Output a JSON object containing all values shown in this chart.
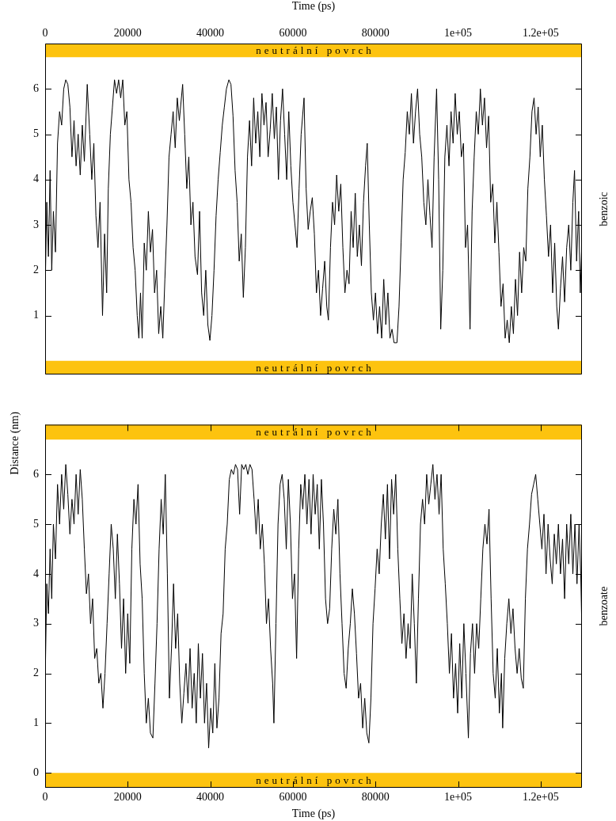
{
  "chart_data": [
    {
      "type": "line",
      "xlim": [
        0,
        130000
      ],
      "x2lim": [
        0,
        130000
      ],
      "x2label": "Time (ps)",
      "x2ticks": [
        0,
        20000,
        40000,
        60000,
        80000,
        {
          "value": 100000,
          "label": "1e+05"
        },
        {
          "value": 120000,
          "label": "1.2e+05"
        }
      ],
      "ylim": [
        -0.3,
        7
      ],
      "yticks": [
        1,
        2,
        3,
        4,
        5,
        6
      ],
      "ylabel": "Distance (nm)",
      "y2label": "benzoic",
      "tick_labels": "y",
      "bands": [
        {
          "axis": "y",
          "from": 6.7,
          "to": 7,
          "label": "neutrální povrch",
          "color": "#fdc30f"
        },
        {
          "axis": "y",
          "from": -0.3,
          "to": 0,
          "label": "neutrální povrch",
          "color": "#fdc30f"
        }
      ],
      "series": [
        {
          "color": "#000000",
          "x": [
            0,
            400,
            800,
            1200,
            1600,
            2000,
            2500,
            3000,
            3500,
            4000,
            4500,
            5000,
            5500,
            6000,
            6500,
            7000,
            7500,
            8000,
            8500,
            9000,
            9500,
            10200,
            10800,
            11300,
            11800,
            12300,
            12800,
            13300,
            13900,
            14400,
            14900,
            15300,
            15800,
            16300,
            16800,
            17300,
            17800,
            18300,
            18800,
            19300,
            19800,
            20300,
            20800,
            21300,
            21800,
            22300,
            22700,
            23100,
            23500,
            24000,
            24500,
            25000,
            25500,
            26000,
            26500,
            27000,
            27500,
            28000,
            28500,
            29000,
            29500,
            30000,
            30500,
            31000,
            31500,
            32000,
            32500,
            33300,
            33800,
            34300,
            34800,
            35300,
            35800,
            36300,
            36900,
            37400,
            37900,
            38400,
            38900,
            39400,
            39900,
            40400,
            40900,
            41400,
            41900,
            42400,
            42900,
            43400,
            43900,
            44500,
            45000,
            45500,
            46000,
            46500,
            47000,
            47500,
            48000,
            48500,
            49000,
            49500,
            50000,
            50500,
            51000,
            51500,
            52000,
            52500,
            53000,
            53500,
            54000,
            54500,
            55000,
            55500,
            56000,
            56500,
            57000,
            57500,
            58000,
            58500,
            59000,
            59500,
            60000,
            60500,
            61000,
            61500,
            62000,
            62700,
            63200,
            63700,
            64200,
            64700,
            65200,
            65700,
            66200,
            66700,
            67200,
            67700,
            68200,
            68600,
            69100,
            69600,
            70100,
            70600,
            71100,
            71600,
            72100,
            72600,
            73100,
            73600,
            74100,
            74600,
            75100,
            75600,
            76100,
            76600,
            77100,
            77600,
            78000,
            78500,
            79000,
            79500,
            80000,
            80500,
            81000,
            81500,
            82000,
            82500,
            83000,
            83500,
            84000,
            84500,
            85200,
            85700,
            86200,
            86700,
            87200,
            87700,
            88200,
            88700,
            89200,
            89700,
            90200,
            90700,
            91200,
            91700,
            92200,
            92700,
            93200,
            93700,
            94200,
            94800,
            95300,
            95800,
            96300,
            96800,
            97300,
            97800,
            98300,
            98800,
            99300,
            99800,
            100300,
            100800,
            101300,
            101800,
            102300,
            102900,
            103400,
            103900,
            104400,
            104900,
            105400,
            105900,
            106400,
            106900,
            107400,
            107900,
            108400,
            108900,
            109400,
            109900,
            110400,
            110900,
            111400,
            111900,
            112400,
            112900,
            113400,
            113900,
            114400,
            114900,
            115400,
            115900,
            116400,
            116900,
            117400,
            117900,
            118400,
            118900,
            119400,
            119900,
            120400,
            120900,
            121400,
            121900,
            122400,
            122900,
            123400,
            123900,
            124300,
            124800,
            125300,
            125800,
            126300,
            126800,
            127300,
            127800,
            128200,
            128700,
            129200,
            129600,
            130000
          ],
          "values": [
            1.5,
            3.5,
            2.3,
            4.2,
            2.0,
            3.3,
            2.4,
            4.8,
            5.5,
            5.2,
            6.0,
            6.2,
            6.1,
            5.6,
            4.5,
            5.3,
            4.3,
            5.0,
            4.1,
            5.2,
            4.4,
            6.1,
            5.0,
            4.0,
            4.8,
            3.2,
            2.5,
            3.5,
            1.0,
            2.8,
            1.5,
            3.8,
            5.0,
            5.6,
            6.2,
            5.9,
            6.2,
            5.8,
            6.2,
            5.2,
            5.5,
            4.0,
            3.5,
            2.5,
            2.0,
            1.0,
            0.5,
            1.5,
            0.5,
            2.6,
            2.0,
            3.3,
            2.4,
            2.9,
            1.5,
            2.0,
            0.6,
            1.2,
            0.5,
            1.8,
            3.0,
            4.5,
            5.0,
            5.5,
            4.7,
            5.8,
            5.3,
            6.1,
            5.0,
            3.8,
            4.5,
            3.0,
            3.5,
            2.3,
            1.9,
            3.3,
            1.5,
            1.0,
            2.0,
            0.8,
            0.45,
            1.0,
            2.0,
            3.2,
            4.0,
            4.6,
            5.2,
            5.6,
            6.0,
            6.2,
            6.1,
            5.4,
            4.2,
            3.5,
            2.2,
            2.8,
            1.4,
            2.5,
            4.5,
            5.3,
            4.3,
            5.8,
            4.8,
            5.5,
            4.5,
            5.9,
            5.2,
            5.7,
            4.5,
            5.1,
            5.9,
            4.9,
            5.6,
            4.0,
            5.3,
            6.0,
            5.0,
            4.0,
            5.5,
            4.3,
            3.5,
            3.0,
            2.5,
            3.8,
            5.0,
            5.8,
            3.8,
            2.9,
            3.3,
            3.6,
            2.8,
            1.5,
            2.0,
            1.0,
            1.6,
            2.2,
            1.2,
            0.9,
            2.5,
            3.5,
            3.0,
            4.1,
            3.3,
            3.9,
            2.5,
            1.5,
            2.0,
            1.7,
            3.3,
            2.5,
            3.7,
            2.3,
            3.0,
            2.1,
            3.5,
            4.3,
            4.8,
            3.0,
            1.5,
            0.9,
            1.5,
            0.6,
            1.2,
            0.5,
            1.8,
            0.8,
            1.5,
            0.5,
            0.7,
            0.4,
            0.4,
            1.2,
            2.6,
            4.0,
            4.6,
            5.5,
            5.0,
            5.9,
            4.8,
            5.5,
            6.0,
            5.0,
            4.5,
            3.5,
            3.0,
            4.0,
            3.2,
            2.5,
            4.5,
            6.0,
            4.0,
            0.7,
            2.0,
            4.5,
            5.2,
            4.3,
            5.5,
            4.8,
            5.9,
            5.0,
            5.5,
            4.5,
            4.8,
            2.5,
            3.0,
            0.7,
            3.3,
            4.5,
            5.5,
            5.0,
            6.0,
            5.2,
            5.8,
            4.7,
            5.4,
            3.5,
            3.9,
            2.6,
            3.5,
            2.4,
            1.2,
            1.7,
            0.5,
            0.9,
            0.4,
            1.2,
            0.6,
            1.8,
            1.0,
            2.4,
            1.5,
            2.5,
            2.2,
            3.8,
            4.5,
            5.5,
            5.8,
            5.0,
            5.6,
            4.5,
            5.2,
            4.0,
            3.2,
            2.3,
            3.0,
            1.5,
            2.6,
            1.2,
            0.7,
            1.6,
            2.3,
            1.3,
            2.5,
            3.0,
            2.0,
            3.5,
            4.2,
            2.2,
            3.3,
            1.5,
            2.7
          ]
        }
      ]
    },
    {
      "type": "line",
      "xlim": [
        0,
        130000
      ],
      "xlabel": "Time (ps)",
      "xticks": [
        0,
        20000,
        40000,
        60000,
        80000,
        {
          "value": 100000,
          "label": "1e+05"
        },
        {
          "value": 120000,
          "label": "1.2e+05"
        }
      ],
      "ylim": [
        -0.3,
        7
      ],
      "yticks": [
        0,
        1,
        2,
        3,
        4,
        5,
        6
      ],
      "y2label": "benzoate",
      "bands": [
        {
          "axis": "y",
          "from": 6.7,
          "to": 7,
          "label": "neutrální povrch",
          "color": "#fdc30f"
        },
        {
          "axis": "y",
          "from": -0.3,
          "to": 0,
          "label": "neutrální povrch",
          "color": "#fdc30f"
        }
      ],
      "series": [
        {
          "color": "#000000",
          "x": [
            0,
            400,
            800,
            1200,
            1600,
            2000,
            2500,
            3000,
            3500,
            4000,
            4500,
            5000,
            5500,
            6000,
            6500,
            7000,
            7500,
            8000,
            8500,
            9000,
            9500,
            10000,
            10500,
            11000,
            11500,
            12000,
            12500,
            13000,
            13500,
            14000,
            14500,
            15000,
            15500,
            16000,
            16500,
            17000,
            17500,
            18000,
            18500,
            19000,
            19500,
            20000,
            20500,
            21000,
            21500,
            22000,
            22500,
            23000,
            23500,
            24000,
            24500,
            25000,
            25500,
            26100,
            26600,
            27100,
            27600,
            28100,
            28600,
            29100,
            29600,
            30100,
            30600,
            31100,
            31600,
            32100,
            32600,
            33100,
            33600,
            34100,
            34600,
            35100,
            35600,
            36100,
            36600,
            37100,
            37600,
            38100,
            38600,
            39100,
            39600,
            40100,
            40600,
            41100,
            41600,
            42100,
            42600,
            43100,
            43600,
            44100,
            44600,
            45100,
            45600,
            46100,
            46600,
            47100,
            47600,
            48100,
            48600,
            49100,
            49600,
            50100,
            50600,
            51100,
            51600,
            52100,
            52600,
            53100,
            53600,
            54100,
            54600,
            55100,
            55400,
            55900,
            56400,
            56900,
            57400,
            57900,
            58400,
            58900,
            59400,
            59900,
            60400,
            60900,
            61400,
            61900,
            62400,
            62900,
            63400,
            63900,
            64400,
            64900,
            65400,
            65900,
            66400,
            66900,
            67400,
            67900,
            68400,
            68900,
            69400,
            69900,
            70400,
            70900,
            71400,
            71900,
            72400,
            72900,
            73400,
            73900,
            74400,
            74900,
            75400,
            75900,
            76400,
            76900,
            77400,
            77900,
            78400,
            78900,
            79400,
            79900,
            80400,
            80900,
            81400,
            81900,
            82400,
            82900,
            83400,
            83900,
            84400,
            84900,
            85400,
            85900,
            86400,
            86900,
            87400,
            87900,
            88400,
            88900,
            89400,
            89900,
            90400,
            90900,
            91400,
            91900,
            92400,
            92900,
            93400,
            93900,
            94400,
            94900,
            95400,
            95900,
            96400,
            96900,
            97400,
            97900,
            98400,
            98900,
            99400,
            99900,
            100400,
            100900,
            101400,
            101900,
            102500,
            103000,
            103500,
            104000,
            104500,
            105000,
            105500,
            106000,
            106500,
            107000,
            107500,
            108000,
            108500,
            109000,
            109500,
            110000,
            110500,
            110800,
            111300,
            111800,
            112300,
            112800,
            113300,
            113800,
            114300,
            114800,
            115300,
            115800,
            116300,
            116800,
            117300,
            117800,
            118300,
            118800,
            119300,
            119800,
            120300,
            120800,
            121300,
            121800,
            122300,
            122800,
            123300,
            123800,
            124300,
            124800,
            125300,
            125800,
            126300,
            126800,
            127300,
            127800,
            128300,
            128800,
            129300,
            129700,
            130000
          ],
          "values": [
            1.8,
            3.8,
            3.2,
            4.5,
            3.5,
            5.0,
            4.3,
            5.8,
            5.0,
            6.0,
            5.3,
            6.2,
            5.6,
            4.8,
            5.5,
            5.0,
            6.0,
            5.2,
            6.1,
            5.5,
            4.5,
            3.6,
            4.0,
            3.0,
            3.5,
            2.3,
            2.5,
            1.8,
            2.0,
            1.3,
            2.0,
            3.0,
            4.0,
            5.0,
            4.5,
            3.5,
            4.8,
            3.8,
            2.5,
            3.5,
            2.0,
            3.2,
            2.2,
            4.5,
            5.5,
            5.0,
            5.8,
            4.2,
            3.5,
            2.0,
            1.0,
            1.5,
            0.8,
            0.7,
            1.8,
            3.0,
            4.5,
            5.5,
            4.8,
            6.0,
            4.0,
            1.5,
            2.5,
            3.8,
            2.5,
            3.2,
            1.8,
            1.0,
            1.6,
            2.2,
            1.4,
            2.5,
            1.3,
            2.0,
            1.0,
            2.6,
            1.5,
            2.4,
            1.0,
            1.8,
            0.5,
            1.3,
            0.8,
            2.2,
            0.9,
            1.5,
            2.8,
            3.2,
            4.5,
            5.0,
            5.9,
            6.1,
            6.0,
            6.2,
            6.1,
            5.2,
            6.2,
            6.1,
            6.2,
            6.0,
            6.2,
            6.1,
            5.5,
            4.8,
            5.5,
            4.5,
            5.0,
            4.2,
            3.0,
            3.5,
            2.5,
            1.8,
            1.0,
            3.0,
            5.0,
            5.8,
            6.0,
            5.5,
            4.5,
            5.9,
            5.0,
            3.5,
            4.0,
            2.3,
            4.5,
            5.8,
            5.3,
            6.0,
            5.0,
            5.9,
            4.8,
            6.0,
            5.2,
            5.8,
            4.5,
            5.9,
            5.0,
            3.5,
            3.0,
            3.3,
            4.5,
            5.3,
            4.8,
            5.5,
            4.0,
            3.0,
            2.0,
            1.7,
            2.5,
            3.0,
            3.7,
            3.2,
            2.4,
            1.5,
            1.8,
            0.9,
            1.5,
            0.8,
            0.6,
            1.5,
            3.0,
            3.7,
            4.5,
            4.0,
            5.0,
            5.6,
            4.7,
            5.8,
            4.3,
            5.9,
            5.2,
            6.0,
            4.5,
            3.5,
            2.6,
            3.2,
            2.3,
            3.0,
            2.5,
            4.0,
            3.0,
            1.8,
            3.5,
            5.0,
            5.5,
            5.0,
            6.0,
            5.4,
            5.8,
            6.2,
            5.5,
            6.0,
            5.2,
            6.0,
            4.5,
            3.8,
            3.0,
            2.0,
            2.8,
            1.5,
            2.2,
            1.2,
            2.6,
            1.5,
            3.0,
            2.0,
            0.7,
            2.4,
            3.0,
            2.0,
            3.0,
            2.5,
            3.5,
            4.5,
            5.0,
            4.6,
            5.3,
            3.5,
            2.0,
            1.5,
            2.5,
            1.2,
            2.0,
            0.9,
            2.3,
            3.0,
            3.5,
            2.8,
            3.3,
            2.5,
            2.0,
            2.5,
            1.9,
            1.7,
            3.5,
            4.5,
            5.0,
            5.6,
            5.8,
            6.0,
            5.5,
            5.0,
            4.5,
            5.2,
            4.0,
            5.0,
            4.3,
            3.8,
            4.8,
            4.2,
            5.0,
            4.0,
            4.7,
            3.5,
            5.0,
            4.2,
            5.2,
            4.0,
            5.0,
            3.8,
            5.0,
            4.0,
            2.8
          ]
        }
      ]
    }
  ]
}
